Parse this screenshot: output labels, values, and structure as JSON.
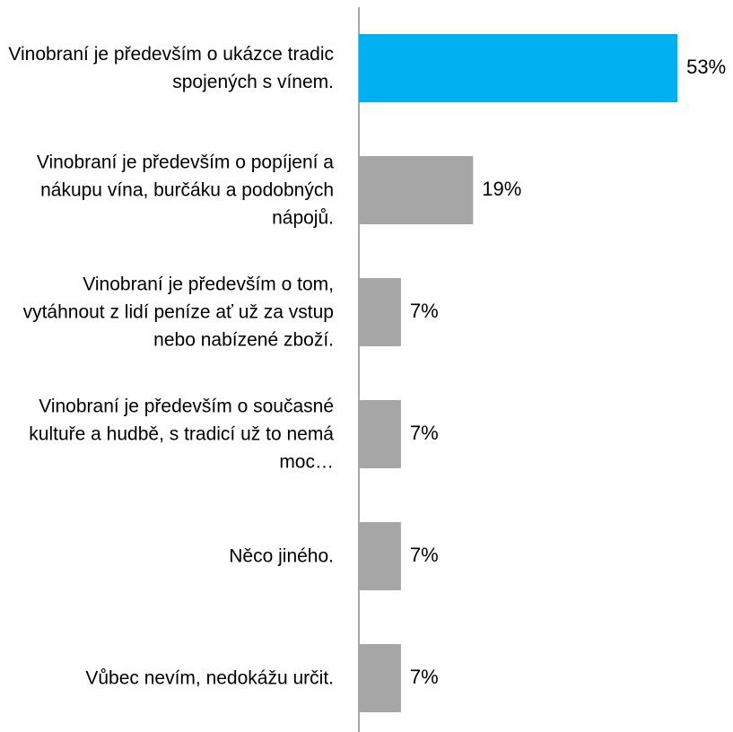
{
  "chart_data": {
    "type": "bar",
    "orientation": "horizontal",
    "categories": [
      "Vinobraní je především o ukázce tradic spojených s vínem.",
      "Vinobraní je především o popíjení a nákupu vína, burčáku a podobných nápojů.",
      "Vinobraní je především o tom, vytáhnout z lidí peníze ať už za vstup nebo nabízené zboží.",
      "Vinobraní je především o současné kultuře a hudbě, s tradicí už to nemá moc…",
      "Něco jiného.",
      "Vůbec nevím, nedokážu určit."
    ],
    "values": [
      53,
      19,
      7,
      7,
      7,
      7
    ],
    "value_labels": [
      "53%",
      "19%",
      "7%",
      "7%",
      "7%",
      "7%"
    ],
    "colors": [
      "#00b0f0",
      "#a6a6a6",
      "#a6a6a6",
      "#a6a6a6",
      "#a6a6a6",
      "#a6a6a6"
    ]
  }
}
